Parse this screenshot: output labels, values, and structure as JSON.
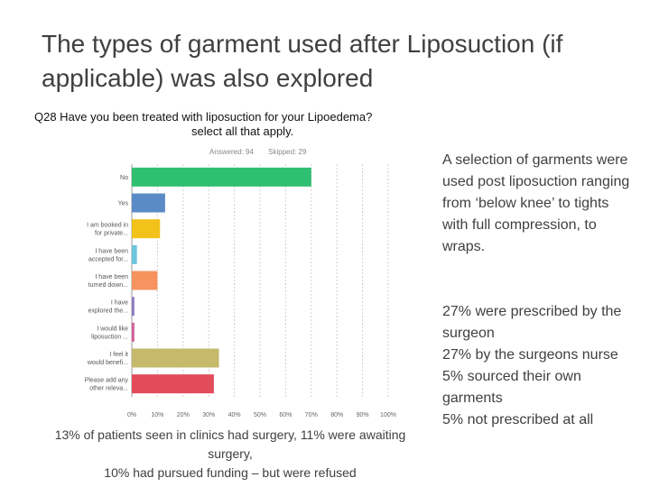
{
  "slide": {
    "title": "The types of garment used after Liposuction (if applicable) was also explored"
  },
  "survey": {
    "question_line1": "Q28 Have you been treated with liposuction for your Lipoedema?",
    "question_line2": "select all that apply.",
    "answered": "Answered: 94",
    "skipped": "Skipped: 29"
  },
  "chart_data": {
    "type": "bar",
    "orientation": "horizontal",
    "categories": [
      [
        "No"
      ],
      [
        "Yes"
      ],
      [
        "I am booked in",
        "for private..."
      ],
      [
        "I have been",
        "accepted for..."
      ],
      [
        "I have been",
        "turned down..."
      ],
      [
        "I have",
        "explored the..."
      ],
      [
        "I would like",
        "liposuction ..."
      ],
      [
        "I feel it",
        "would benefi..."
      ],
      [
        "Please add any",
        "other releva..."
      ]
    ],
    "values": [
      70,
      13,
      11,
      2,
      10,
      1,
      1,
      34,
      32
    ],
    "colors": [
      "#2fbf71",
      "#5b8bc7",
      "#f2c21b",
      "#6cc6dc",
      "#f6935f",
      "#8e7cc3",
      "#d35f9b",
      "#c6b96c",
      "#e14b5a"
    ],
    "xlim": [
      0,
      100
    ],
    "xticks": [
      "0%",
      "10%",
      "20%",
      "30%",
      "40%",
      "50%",
      "60%",
      "70%",
      "80%",
      "90%",
      "100%"
    ],
    "grid": true
  },
  "side": {
    "top_text": "A selection of garments were used post liposuction ranging from ‘below knee’ to tights with full compression, to wraps.",
    "lines": [
      "27% were prescribed by the surgeon",
      "27% by the surgeons nurse",
      "5% sourced their own garments",
      "5% not prescribed at all"
    ]
  },
  "caption": {
    "line1": "13% of patients seen in clinics had surgery, 11% were awaiting surgery,",
    "line2": "10% had pursued funding – but were refused"
  }
}
